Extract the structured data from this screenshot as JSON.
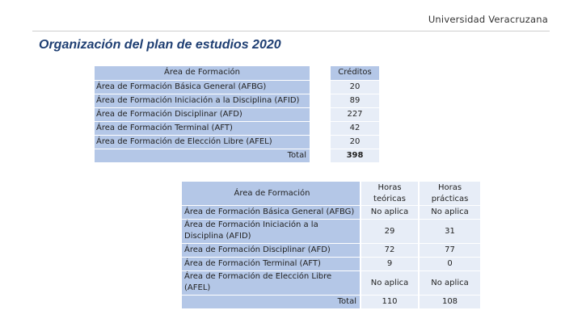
{
  "header": {
    "brand": "Universidad Veracruzana",
    "title": "Organización del plan de estudios 2020"
  },
  "table1": {
    "col_area": "Área de Formación",
    "col_credits": "Créditos",
    "rows": [
      {
        "area": "Área de Formación Básica General (AFBG)",
        "credits": "20"
      },
      {
        "area": "Área de Formación Iniciación a la Disciplina (AFID)",
        "credits": "89"
      },
      {
        "area": "Área de Formación Disciplinar (AFD)",
        "credits": "227"
      },
      {
        "area": "Área de Formación Terminal (AFT)",
        "credits": "42"
      },
      {
        "area": "Área de Formación de Elección Libre (AFEL)",
        "credits": "20"
      }
    ],
    "total_label": "Total",
    "total_credits": "398"
  },
  "table2": {
    "col_area": "Área de Formación",
    "col_theory": "Horas teóricas",
    "col_practice": "Horas prácticas",
    "rows": [
      {
        "area": "Área de Formación Básica General (AFBG)",
        "theory": "No aplica",
        "practice": "No aplica"
      },
      {
        "area": "Área de Formación Iniciación a la Disciplina (AFID)",
        "theory": "29",
        "practice": "31"
      },
      {
        "area": "Área de Formación Disciplinar (AFD)",
        "theory": "72",
        "practice": "77"
      },
      {
        "area": "Área de Formación Terminal (AFT)",
        "theory": "9",
        "practice": "0"
      },
      {
        "area": "Área de Formación de Elección Libre (AFEL)",
        "theory": "No aplica",
        "practice": "No aplica"
      }
    ],
    "total_label": "Total",
    "total_theory": "110",
    "total_practice": "108"
  }
}
